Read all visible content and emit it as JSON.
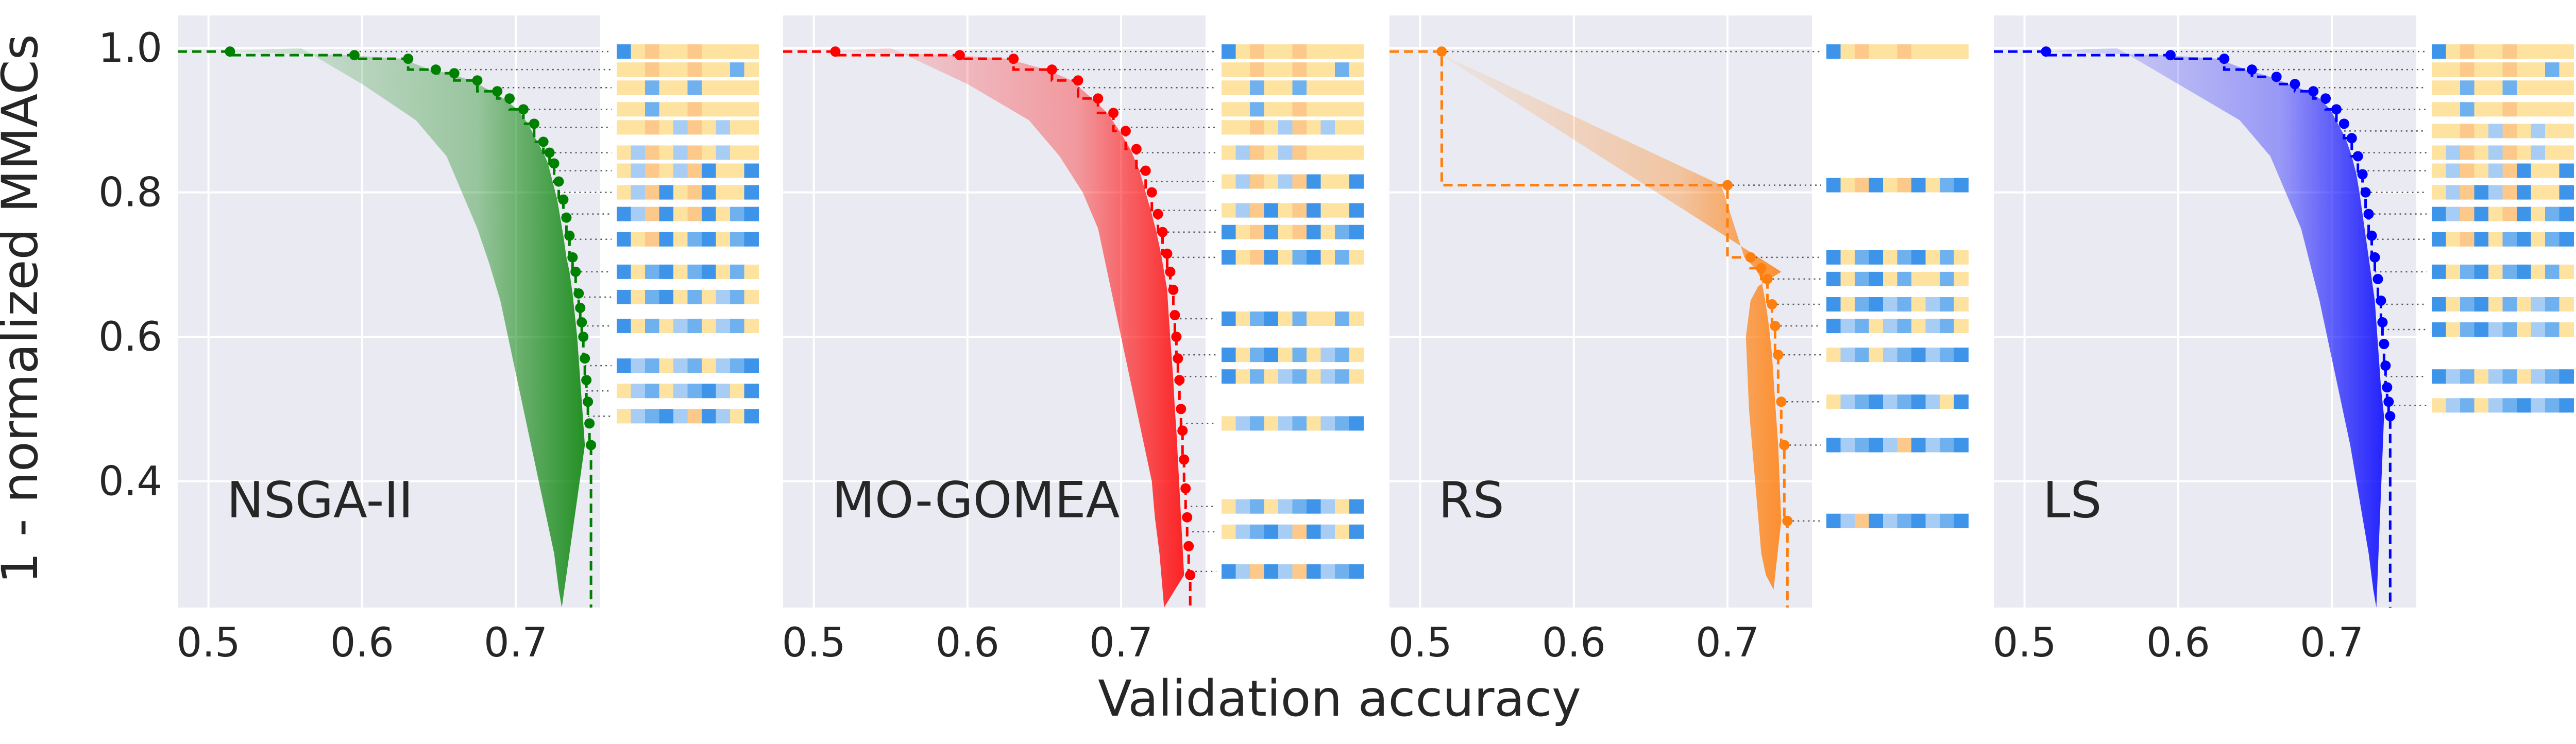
{
  "chart_data": {
    "type": "scatter",
    "ylabel": "1 - normalized MMACs",
    "xlabel": "Validation accuracy",
    "xlim": [
      0.48,
      0.755
    ],
    "ylim": [
      0.225,
      1.045
    ],
    "xticks": [
      0.5,
      0.6,
      0.7
    ],
    "yticks": [
      0.4,
      0.6,
      0.8,
      1.0
    ],
    "xtick_labels": [
      "0.5",
      "0.6",
      "0.7"
    ],
    "ytick_labels": [
      "0.4",
      "0.6",
      "0.8",
      "1.0"
    ],
    "grid": true,
    "panels": [
      {
        "name": "NSGA-II",
        "color": "#008000",
        "front": [
          [
            0.514,
            0.995
          ],
          [
            0.595,
            0.99
          ],
          [
            0.63,
            0.985
          ],
          [
            0.648,
            0.97
          ],
          [
            0.66,
            0.965
          ],
          [
            0.675,
            0.955
          ],
          [
            0.688,
            0.94
          ],
          [
            0.696,
            0.93
          ],
          [
            0.705,
            0.915
          ],
          [
            0.712,
            0.895
          ],
          [
            0.718,
            0.87
          ],
          [
            0.722,
            0.855
          ],
          [
            0.725,
            0.84
          ],
          [
            0.728,
            0.815
          ],
          [
            0.731,
            0.79
          ],
          [
            0.733,
            0.765
          ],
          [
            0.735,
            0.74
          ],
          [
            0.737,
            0.71
          ],
          [
            0.739,
            0.69
          ],
          [
            0.741,
            0.66
          ],
          [
            0.742,
            0.64
          ],
          [
            0.743,
            0.62
          ],
          [
            0.744,
            0.6
          ],
          [
            0.745,
            0.57
          ],
          [
            0.746,
            0.54
          ],
          [
            0.747,
            0.51
          ],
          [
            0.748,
            0.48
          ],
          [
            0.749,
            0.45
          ]
        ],
        "cloud_profile": [
          [
            1.0,
            0.56
          ],
          [
            0.95,
            0.6
          ],
          [
            0.9,
            0.635
          ],
          [
            0.85,
            0.655
          ],
          [
            0.8,
            0.665
          ],
          [
            0.75,
            0.675
          ],
          [
            0.7,
            0.683
          ],
          [
            0.65,
            0.69
          ],
          [
            0.6,
            0.695
          ],
          [
            0.55,
            0.7
          ],
          [
            0.5,
            0.705
          ],
          [
            0.45,
            0.71
          ],
          [
            0.4,
            0.715
          ],
          [
            0.35,
            0.72
          ],
          [
            0.3,
            0.725
          ],
          [
            0.25,
            0.728
          ],
          [
            0.225,
            0.73
          ]
        ],
        "encodings": [
          0.995,
          0.97,
          0.945,
          0.915,
          0.89,
          0.855,
          0.83,
          0.8,
          0.77,
          0.735,
          0.69,
          0.655,
          0.615,
          0.56,
          0.525,
          0.49
        ],
        "encoding_fraction": [
          0.05,
          0.1,
          0.12,
          0.18,
          0.2,
          0.28,
          0.33,
          0.38,
          0.45,
          0.52,
          0.56,
          0.62,
          0.66,
          0.72,
          0.76,
          0.8
        ]
      },
      {
        "name": "MO-GOMEA",
        "color": "#ff0000",
        "front": [
          [
            0.514,
            0.995
          ],
          [
            0.595,
            0.99
          ],
          [
            0.63,
            0.985
          ],
          [
            0.655,
            0.97
          ],
          [
            0.672,
            0.955
          ],
          [
            0.685,
            0.93
          ],
          [
            0.695,
            0.91
          ],
          [
            0.703,
            0.885
          ],
          [
            0.71,
            0.86
          ],
          [
            0.716,
            0.83
          ],
          [
            0.72,
            0.8
          ],
          [
            0.724,
            0.77
          ],
          [
            0.727,
            0.745
          ],
          [
            0.73,
            0.715
          ],
          [
            0.732,
            0.69
          ],
          [
            0.734,
            0.665
          ],
          [
            0.735,
            0.63
          ],
          [
            0.736,
            0.6
          ],
          [
            0.737,
            0.57
          ],
          [
            0.738,
            0.54
          ],
          [
            0.739,
            0.5
          ],
          [
            0.74,
            0.47
          ],
          [
            0.741,
            0.43
          ],
          [
            0.742,
            0.39
          ],
          [
            0.743,
            0.35
          ],
          [
            0.744,
            0.31
          ],
          [
            0.745,
            0.27
          ]
        ],
        "cloud_profile": [
          [
            1.0,
            0.55
          ],
          [
            0.95,
            0.6
          ],
          [
            0.9,
            0.64
          ],
          [
            0.85,
            0.66
          ],
          [
            0.8,
            0.675
          ],
          [
            0.75,
            0.685
          ],
          [
            0.7,
            0.69
          ],
          [
            0.65,
            0.695
          ],
          [
            0.6,
            0.7
          ],
          [
            0.55,
            0.705
          ],
          [
            0.5,
            0.71
          ],
          [
            0.45,
            0.715
          ],
          [
            0.4,
            0.72
          ],
          [
            0.35,
            0.722
          ],
          [
            0.3,
            0.725
          ],
          [
            0.25,
            0.727
          ],
          [
            0.225,
            0.728
          ]
        ],
        "encodings": [
          0.995,
          0.97,
          0.945,
          0.915,
          0.89,
          0.855,
          0.815,
          0.775,
          0.745,
          0.71,
          0.625,
          0.575,
          0.545,
          0.48,
          0.365,
          0.33,
          0.275
        ],
        "encoding_fraction": [
          0.05,
          0.1,
          0.13,
          0.16,
          0.2,
          0.24,
          0.3,
          0.36,
          0.4,
          0.45,
          0.52,
          0.58,
          0.62,
          0.66,
          0.72,
          0.76,
          0.8
        ]
      },
      {
        "name": "RS",
        "color": "#ff7f0e",
        "front": [
          [
            0.514,
            0.995
          ],
          [
            0.7,
            0.81
          ],
          [
            0.715,
            0.71
          ],
          [
            0.722,
            0.695
          ],
          [
            0.726,
            0.68
          ],
          [
            0.729,
            0.645
          ],
          [
            0.731,
            0.615
          ],
          [
            0.733,
            0.575
          ],
          [
            0.735,
            0.51
          ],
          [
            0.737,
            0.45
          ],
          [
            0.739,
            0.345
          ]
        ],
        "cloud_profile": [
          [
            0.69,
            0.735
          ],
          [
            0.67,
            0.72
          ],
          [
            0.65,
            0.715
          ],
          [
            0.6,
            0.712
          ],
          [
            0.55,
            0.713
          ],
          [
            0.5,
            0.714
          ],
          [
            0.45,
            0.716
          ],
          [
            0.4,
            0.718
          ],
          [
            0.35,
            0.72
          ],
          [
            0.3,
            0.722
          ],
          [
            0.27,
            0.725
          ],
          [
            0.25,
            0.73
          ]
        ],
        "encodings": [
          0.995,
          0.81,
          0.71,
          0.68,
          0.645,
          0.615,
          0.575,
          0.51,
          0.45,
          0.345
        ],
        "encoding_fraction": [
          0.1,
          0.5,
          0.55,
          0.6,
          0.65,
          0.7,
          0.75,
          0.8,
          0.85,
          0.9
        ]
      },
      {
        "name": "LS",
        "color": "#0000ff",
        "front": [
          [
            0.514,
            0.995
          ],
          [
            0.595,
            0.99
          ],
          [
            0.63,
            0.985
          ],
          [
            0.648,
            0.97
          ],
          [
            0.664,
            0.96
          ],
          [
            0.676,
            0.95
          ],
          [
            0.688,
            0.94
          ],
          [
            0.696,
            0.93
          ],
          [
            0.703,
            0.915
          ],
          [
            0.708,
            0.895
          ],
          [
            0.713,
            0.875
          ],
          [
            0.717,
            0.85
          ],
          [
            0.72,
            0.825
          ],
          [
            0.722,
            0.8
          ],
          [
            0.724,
            0.77
          ],
          [
            0.726,
            0.74
          ],
          [
            0.728,
            0.71
          ],
          [
            0.73,
            0.68
          ],
          [
            0.732,
            0.65
          ],
          [
            0.733,
            0.62
          ],
          [
            0.734,
            0.59
          ],
          [
            0.735,
            0.56
          ],
          [
            0.736,
            0.53
          ],
          [
            0.737,
            0.51
          ],
          [
            0.738,
            0.49
          ]
        ],
        "cloud_profile": [
          [
            1.0,
            0.56
          ],
          [
            0.95,
            0.6
          ],
          [
            0.9,
            0.64
          ],
          [
            0.85,
            0.66
          ],
          [
            0.8,
            0.67
          ],
          [
            0.75,
            0.68
          ],
          [
            0.7,
            0.686
          ],
          [
            0.65,
            0.692
          ],
          [
            0.6,
            0.697
          ],
          [
            0.55,
            0.702
          ],
          [
            0.5,
            0.707
          ],
          [
            0.45,
            0.712
          ],
          [
            0.4,
            0.716
          ],
          [
            0.35,
            0.72
          ],
          [
            0.3,
            0.724
          ],
          [
            0.25,
            0.727
          ],
          [
            0.225,
            0.729
          ]
        ],
        "encodings": [
          0.995,
          0.97,
          0.945,
          0.915,
          0.885,
          0.855,
          0.83,
          0.8,
          0.77,
          0.735,
          0.69,
          0.645,
          0.61,
          0.545,
          0.505
        ],
        "encoding_fraction": [
          0.05,
          0.1,
          0.12,
          0.18,
          0.22,
          0.28,
          0.34,
          0.4,
          0.46,
          0.52,
          0.58,
          0.64,
          0.68,
          0.74,
          0.8
        ]
      }
    ]
  }
}
